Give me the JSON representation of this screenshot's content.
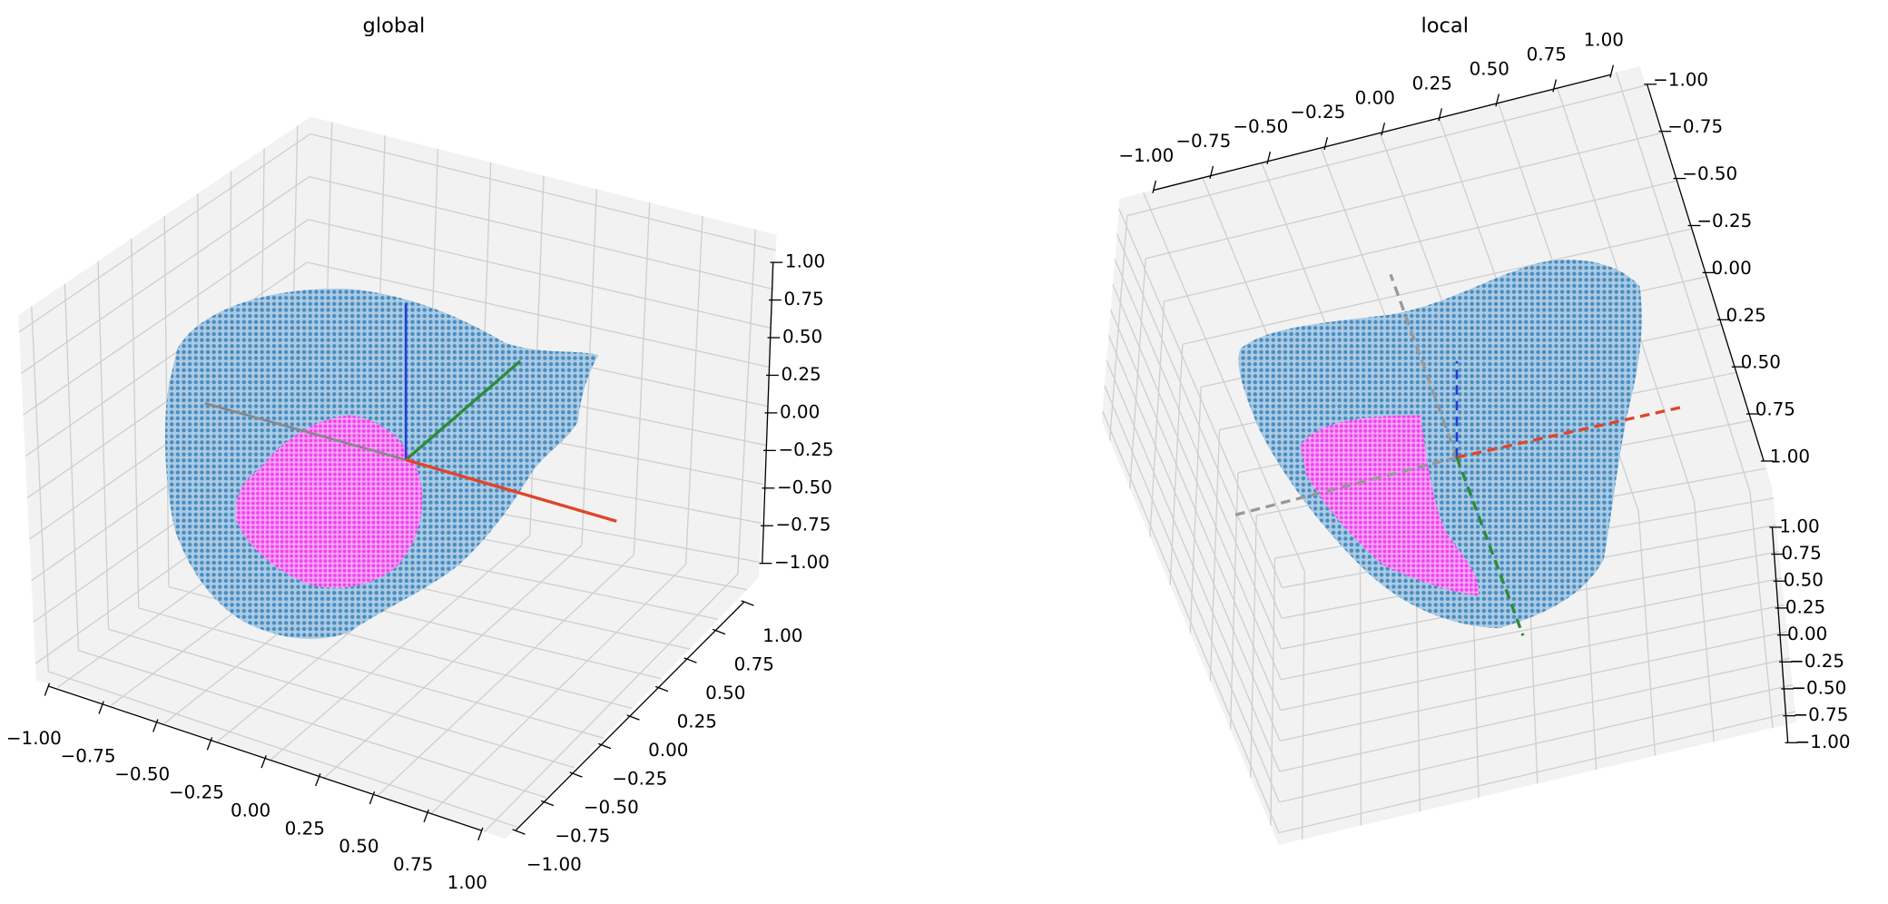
{
  "chart_data": [
    {
      "type": "scatter3d",
      "title": "global",
      "grid": true,
      "xlim": [
        -1,
        1
      ],
      "ylim": [
        -1,
        1
      ],
      "zlim": [
        -1,
        1
      ],
      "xticks": [
        {
          "value": -1,
          "label": "−1.00"
        },
        {
          "value": -0.75,
          "label": "−0.75"
        },
        {
          "value": -0.5,
          "label": "−0.50"
        },
        {
          "value": -0.25,
          "label": "−0.25"
        },
        {
          "value": 0,
          "label": "0.00"
        },
        {
          "value": 0.25,
          "label": "0.25"
        },
        {
          "value": 0.5,
          "label": "0.50"
        },
        {
          "value": 0.75,
          "label": "0.75"
        },
        {
          "value": 1,
          "label": "1.00"
        }
      ],
      "yticks": [
        {
          "value": -1,
          "label": "−1.00"
        },
        {
          "value": -0.75,
          "label": "−0.75"
        },
        {
          "value": -0.5,
          "label": "−0.50"
        },
        {
          "value": -0.25,
          "label": "−0.25"
        },
        {
          "value": 0,
          "label": "0.00"
        },
        {
          "value": 0.25,
          "label": "0.25"
        },
        {
          "value": 0.5,
          "label": "0.50"
        },
        {
          "value": 0.75,
          "label": "0.75"
        },
        {
          "value": 1,
          "label": "1.00"
        }
      ],
      "zticks": [
        {
          "value": -1,
          "label": "−1.00"
        },
        {
          "value": -0.75,
          "label": "−0.75"
        },
        {
          "value": -0.5,
          "label": "−0.50"
        },
        {
          "value": -0.25,
          "label": "−0.25"
        },
        {
          "value": 0,
          "label": "0.00"
        },
        {
          "value": 0.25,
          "label": "0.25"
        },
        {
          "value": 0.5,
          "label": "0.50"
        },
        {
          "value": 0.75,
          "label": "0.75"
        },
        {
          "value": 1,
          "label": "1.00"
        }
      ]
    },
    {
      "type": "scatter3d",
      "title": "local",
      "grid": true,
      "xlim": [
        -1,
        1
      ],
      "ylim": [
        -1,
        1
      ],
      "zlim": [
        -1,
        1
      ],
      "xticks": [
        {
          "value": -1,
          "label": "−1.00"
        },
        {
          "value": -0.75,
          "label": "−0.75"
        },
        {
          "value": -0.5,
          "label": "−0.50"
        },
        {
          "value": -0.25,
          "label": "−0.25"
        },
        {
          "value": 0,
          "label": "0.00"
        },
        {
          "value": 0.25,
          "label": "0.25"
        },
        {
          "value": 0.5,
          "label": "0.50"
        },
        {
          "value": 0.75,
          "label": "0.75"
        },
        {
          "value": 1,
          "label": "1.00"
        }
      ],
      "yticks": [
        {
          "value": -1,
          "label": "−1.00"
        },
        {
          "value": -0.75,
          "label": "−0.75"
        },
        {
          "value": -0.5,
          "label": "−0.50"
        },
        {
          "value": -0.25,
          "label": "−0.25"
        },
        {
          "value": 0,
          "label": "0.00"
        },
        {
          "value": 0.25,
          "label": "0.25"
        },
        {
          "value": 0.5,
          "label": "0.50"
        },
        {
          "value": 0.75,
          "label": "0.75"
        },
        {
          "value": 1,
          "label": "1.00"
        }
      ],
      "zticks": [
        {
          "value": -1,
          "label": "−1.00"
        },
        {
          "value": -0.75,
          "label": "−0.75"
        },
        {
          "value": -0.5,
          "label": "−0.50"
        },
        {
          "value": -0.25,
          "label": "−0.25"
        },
        {
          "value": 0,
          "label": "0.00"
        },
        {
          "value": 0.25,
          "label": "0.25"
        },
        {
          "value": 0.5,
          "label": "0.50"
        },
        {
          "value": 0.75,
          "label": "0.75"
        },
        {
          "value": 1,
          "label": "1.00"
        }
      ]
    }
  ]
}
